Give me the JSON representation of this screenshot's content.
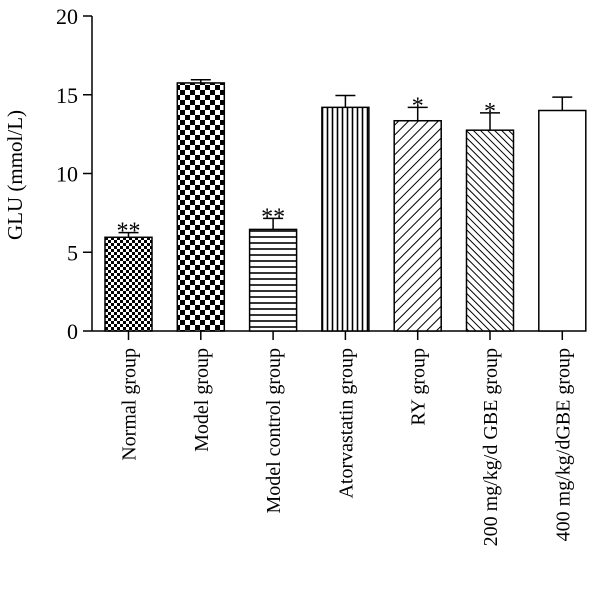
{
  "chart_data": {
    "type": "bar",
    "ylabel": "GLU (mmol/L)",
    "xlabel": "",
    "ylim": [
      0,
      20
    ],
    "yticks": [
      0,
      5,
      10,
      15,
      20
    ],
    "grid": false,
    "categories": [
      "Normal group",
      "Model group",
      "Model control group",
      "Atorvastatin group",
      "RY group",
      "200 mg/kg/d GBE group",
      "400 mg/kg/dGBE group"
    ],
    "values": [
      5.95,
      15.75,
      6.45,
      14.2,
      13.35,
      12.75,
      14.0
    ],
    "errors": [
      0.3,
      0.2,
      0.7,
      0.75,
      0.85,
      1.1,
      0.85
    ],
    "significance": [
      "**",
      "",
      "**",
      "",
      "*",
      "*",
      ""
    ],
    "patterns": [
      "small-checker",
      "big-checker",
      "horizontal-lines",
      "vertical-lines",
      "diagonal-lines",
      "diagonal-lines-dense",
      "none"
    ]
  }
}
